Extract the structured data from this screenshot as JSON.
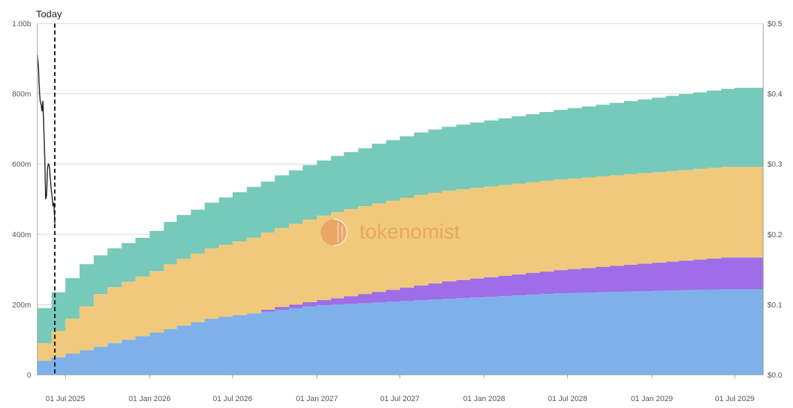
{
  "chart_data": {
    "type": "area",
    "stacked": true,
    "today_label": "Today",
    "x_tick_labels": [
      "01 Jul 2025",
      "01 Jan 2026",
      "01 Jul 2026",
      "01 Jan 2027",
      "01 Jul 2027",
      "01 Jan 2028",
      "01 Jul 2028",
      "01 Jan 2029",
      "01 Jul 2029"
    ],
    "y_left": {
      "ticks": [
        0,
        200,
        400,
        600,
        800,
        1000
      ],
      "tick_labels": [
        "0",
        "200m",
        "400m",
        "600m",
        "800m",
        "1.00b"
      ],
      "ylim": [
        0,
        1000
      ]
    },
    "y_right": {
      "ticks": [
        0,
        0.1,
        0.2,
        0.3,
        0.4,
        0.5
      ],
      "tick_labels": [
        "$0.0",
        "$0.1",
        "$0.2",
        "$0.3",
        "$0.4",
        "$0.5"
      ],
      "ylim": [
        0,
        0.5
      ]
    },
    "grid": true,
    "x_start": "2025-05-01",
    "x_end": "2029-09-01",
    "today": "2025-06-08",
    "steps": [
      "2025-05-01",
      "2025-06-01",
      "2025-07-01",
      "2025-08-01",
      "2025-09-01",
      "2025-10-01",
      "2025-11-01",
      "2025-12-01",
      "2026-01-01",
      "2026-02-01",
      "2026-03-01",
      "2026-04-01",
      "2026-05-01",
      "2026-06-01",
      "2026-07-01",
      "2026-08-01",
      "2026-09-01",
      "2026-10-01",
      "2026-11-01",
      "2026-12-01",
      "2027-01-01",
      "2027-02-01",
      "2027-03-01",
      "2027-04-01",
      "2027-05-01",
      "2027-06-01",
      "2027-07-01",
      "2027-08-01",
      "2027-09-01",
      "2027-10-01",
      "2027-11-01",
      "2027-12-01",
      "2028-01-01",
      "2028-02-01",
      "2028-03-01",
      "2028-04-01",
      "2028-05-01",
      "2028-06-01",
      "2028-07-01",
      "2028-08-01",
      "2028-09-01",
      "2028-10-01",
      "2028-11-01",
      "2028-12-01",
      "2029-01-01",
      "2029-02-01",
      "2029-03-01",
      "2029-04-01",
      "2029-05-01",
      "2029-06-01",
      "2029-07-01",
      "2029-08-01"
    ],
    "series": [
      {
        "color": "#7eb1e9",
        "values": [
          40,
          50,
          60,
          70,
          80,
          90,
          100,
          110,
          120,
          130,
          140,
          150,
          160,
          165,
          170,
          175,
          180,
          185,
          190,
          195,
          198,
          200,
          202,
          204,
          206,
          208,
          210,
          212,
          214,
          216,
          218,
          220,
          222,
          224,
          226,
          228,
          230,
          232,
          233,
          234,
          235,
          236,
          237,
          238,
          239,
          240,
          241,
          242,
          243,
          244,
          244,
          244
        ]
      },
      {
        "color": "#a06de8",
        "values": [
          0,
          0,
          0,
          0,
          0,
          0,
          0,
          0,
          0,
          0,
          0,
          0,
          0,
          0,
          0,
          0,
          5,
          8,
          10,
          12,
          15,
          18,
          22,
          26,
          30,
          34,
          38,
          42,
          46,
          50,
          52,
          54,
          56,
          58,
          60,
          62,
          64,
          66,
          68,
          70,
          72,
          74,
          76,
          78,
          80,
          82,
          84,
          86,
          88,
          90,
          90,
          90
        ]
      },
      {
        "color": "#f0c97c",
        "values": [
          50,
          75,
          100,
          125,
          150,
          160,
          165,
          170,
          175,
          185,
          190,
          195,
          200,
          205,
          210,
          215,
          220,
          225,
          230,
          235,
          240,
          245,
          248,
          250,
          252,
          254,
          256,
          258,
          258,
          258,
          258,
          258,
          258,
          258,
          258,
          258,
          258,
          258,
          258,
          258,
          258,
          258,
          258,
          258,
          258,
          258,
          258,
          258,
          258,
          258,
          258,
          258
        ]
      },
      {
        "color": "#77c9ba",
        "values": [
          100,
          110,
          115,
          120,
          110,
          110,
          110,
          110,
          115,
          120,
          125,
          125,
          130,
          135,
          140,
          145,
          145,
          150,
          152,
          155,
          157,
          160,
          162,
          165,
          170,
          172,
          175,
          178,
          180,
          182,
          184,
          186,
          188,
          190,
          192,
          194,
          196,
          198,
          200,
          202,
          204,
          206,
          208,
          210,
          212,
          214,
          216,
          218,
          220,
          222,
          225,
          225
        ]
      }
    ],
    "price_line": {
      "color": "#222222",
      "x": [
        "2025-05-01",
        "2025-05-03",
        "2025-05-05",
        "2025-05-07",
        "2025-05-09",
        "2025-05-11",
        "2025-05-13",
        "2025-05-15",
        "2025-05-17",
        "2025-05-19",
        "2025-05-21",
        "2025-05-23",
        "2025-05-25",
        "2025-05-27",
        "2025-05-29",
        "2025-05-31",
        "2025-06-02",
        "2025-06-04",
        "2025-06-06",
        "2025-06-08"
      ],
      "y": [
        0.455,
        0.44,
        0.41,
        0.39,
        0.385,
        0.375,
        0.39,
        0.35,
        0.31,
        0.25,
        0.255,
        0.295,
        0.3,
        0.298,
        0.28,
        0.265,
        0.255,
        0.24,
        0.245,
        0.215
      ]
    },
    "watermark": "tokenomist"
  }
}
